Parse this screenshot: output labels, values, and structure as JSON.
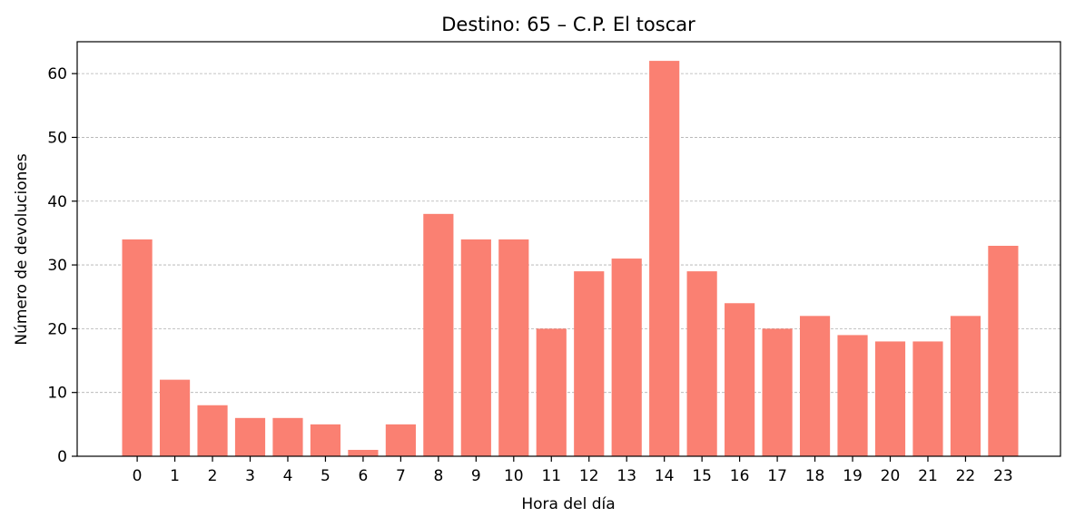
{
  "chart_data": {
    "type": "bar",
    "title": "Destino: 65 – C.P. El toscar",
    "xlabel": "Hora del día",
    "ylabel": "Número de devoluciones",
    "categories": [
      "0",
      "1",
      "2",
      "3",
      "4",
      "5",
      "6",
      "7",
      "8",
      "9",
      "10",
      "11",
      "12",
      "13",
      "14",
      "15",
      "16",
      "17",
      "18",
      "19",
      "20",
      "21",
      "22",
      "23"
    ],
    "values": [
      34,
      12,
      8,
      6,
      6,
      5,
      1,
      5,
      38,
      34,
      34,
      20,
      29,
      31,
      62,
      29,
      24,
      20,
      22,
      19,
      18,
      18,
      22,
      33
    ],
    "yticks": [
      0,
      10,
      20,
      30,
      40,
      50,
      60
    ],
    "ylim": [
      0,
      65
    ],
    "grid": "y",
    "bar_color": "#fa8072"
  }
}
